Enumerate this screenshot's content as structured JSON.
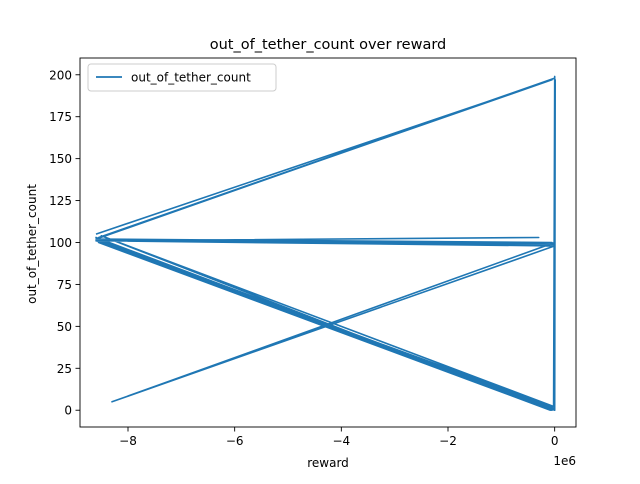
{
  "chart_data": {
    "type": "line",
    "title": "out_of_tether_count over reward",
    "xlabel": "reward",
    "ylabel": "out_of_tether_count",
    "x_offset_label": "1e6",
    "x_scale": 1000000,
    "xlim": [
      -8.9,
      0.4
    ],
    "ylim": [
      -10,
      210
    ],
    "x_ticks": [
      -8,
      -6,
      -4,
      -2,
      0
    ],
    "x_tick_labels": [
      "−8",
      "−6",
      "−4",
      "−2",
      "0"
    ],
    "y_ticks": [
      0,
      25,
      50,
      75,
      100,
      125,
      150,
      175,
      200
    ],
    "y_tick_labels": [
      "0",
      "25",
      "50",
      "75",
      "100",
      "125",
      "150",
      "175",
      "200"
    ],
    "legend": {
      "position": "top-left",
      "entries": [
        "out_of_tether_count"
      ]
    },
    "grid": false,
    "series": [
      {
        "name": "out_of_tether_count",
        "color": "#1f77b4",
        "x": [
          -8.6,
          -0.05,
          -8.55,
          0,
          -8.6,
          -0.05,
          -8.6,
          -0.3,
          -8.55,
          0,
          -8.55,
          0,
          -8.6,
          0,
          -8.5,
          -0.08,
          -8.55,
          -0.05,
          -8.6,
          0,
          -8.55,
          0,
          -8.3,
          0,
          -0.02,
          0,
          0,
          0.01,
          0,
          0
        ],
        "y": [
          105,
          197,
          103,
          198,
          102,
          100,
          101,
          103,
          101,
          99,
          102,
          1,
          101,
          2,
          104,
          0,
          100,
          0,
          103,
          0,
          101,
          98,
          5,
          100,
          3,
          199,
          0,
          197,
          5,
          0
        ]
      }
    ]
  }
}
